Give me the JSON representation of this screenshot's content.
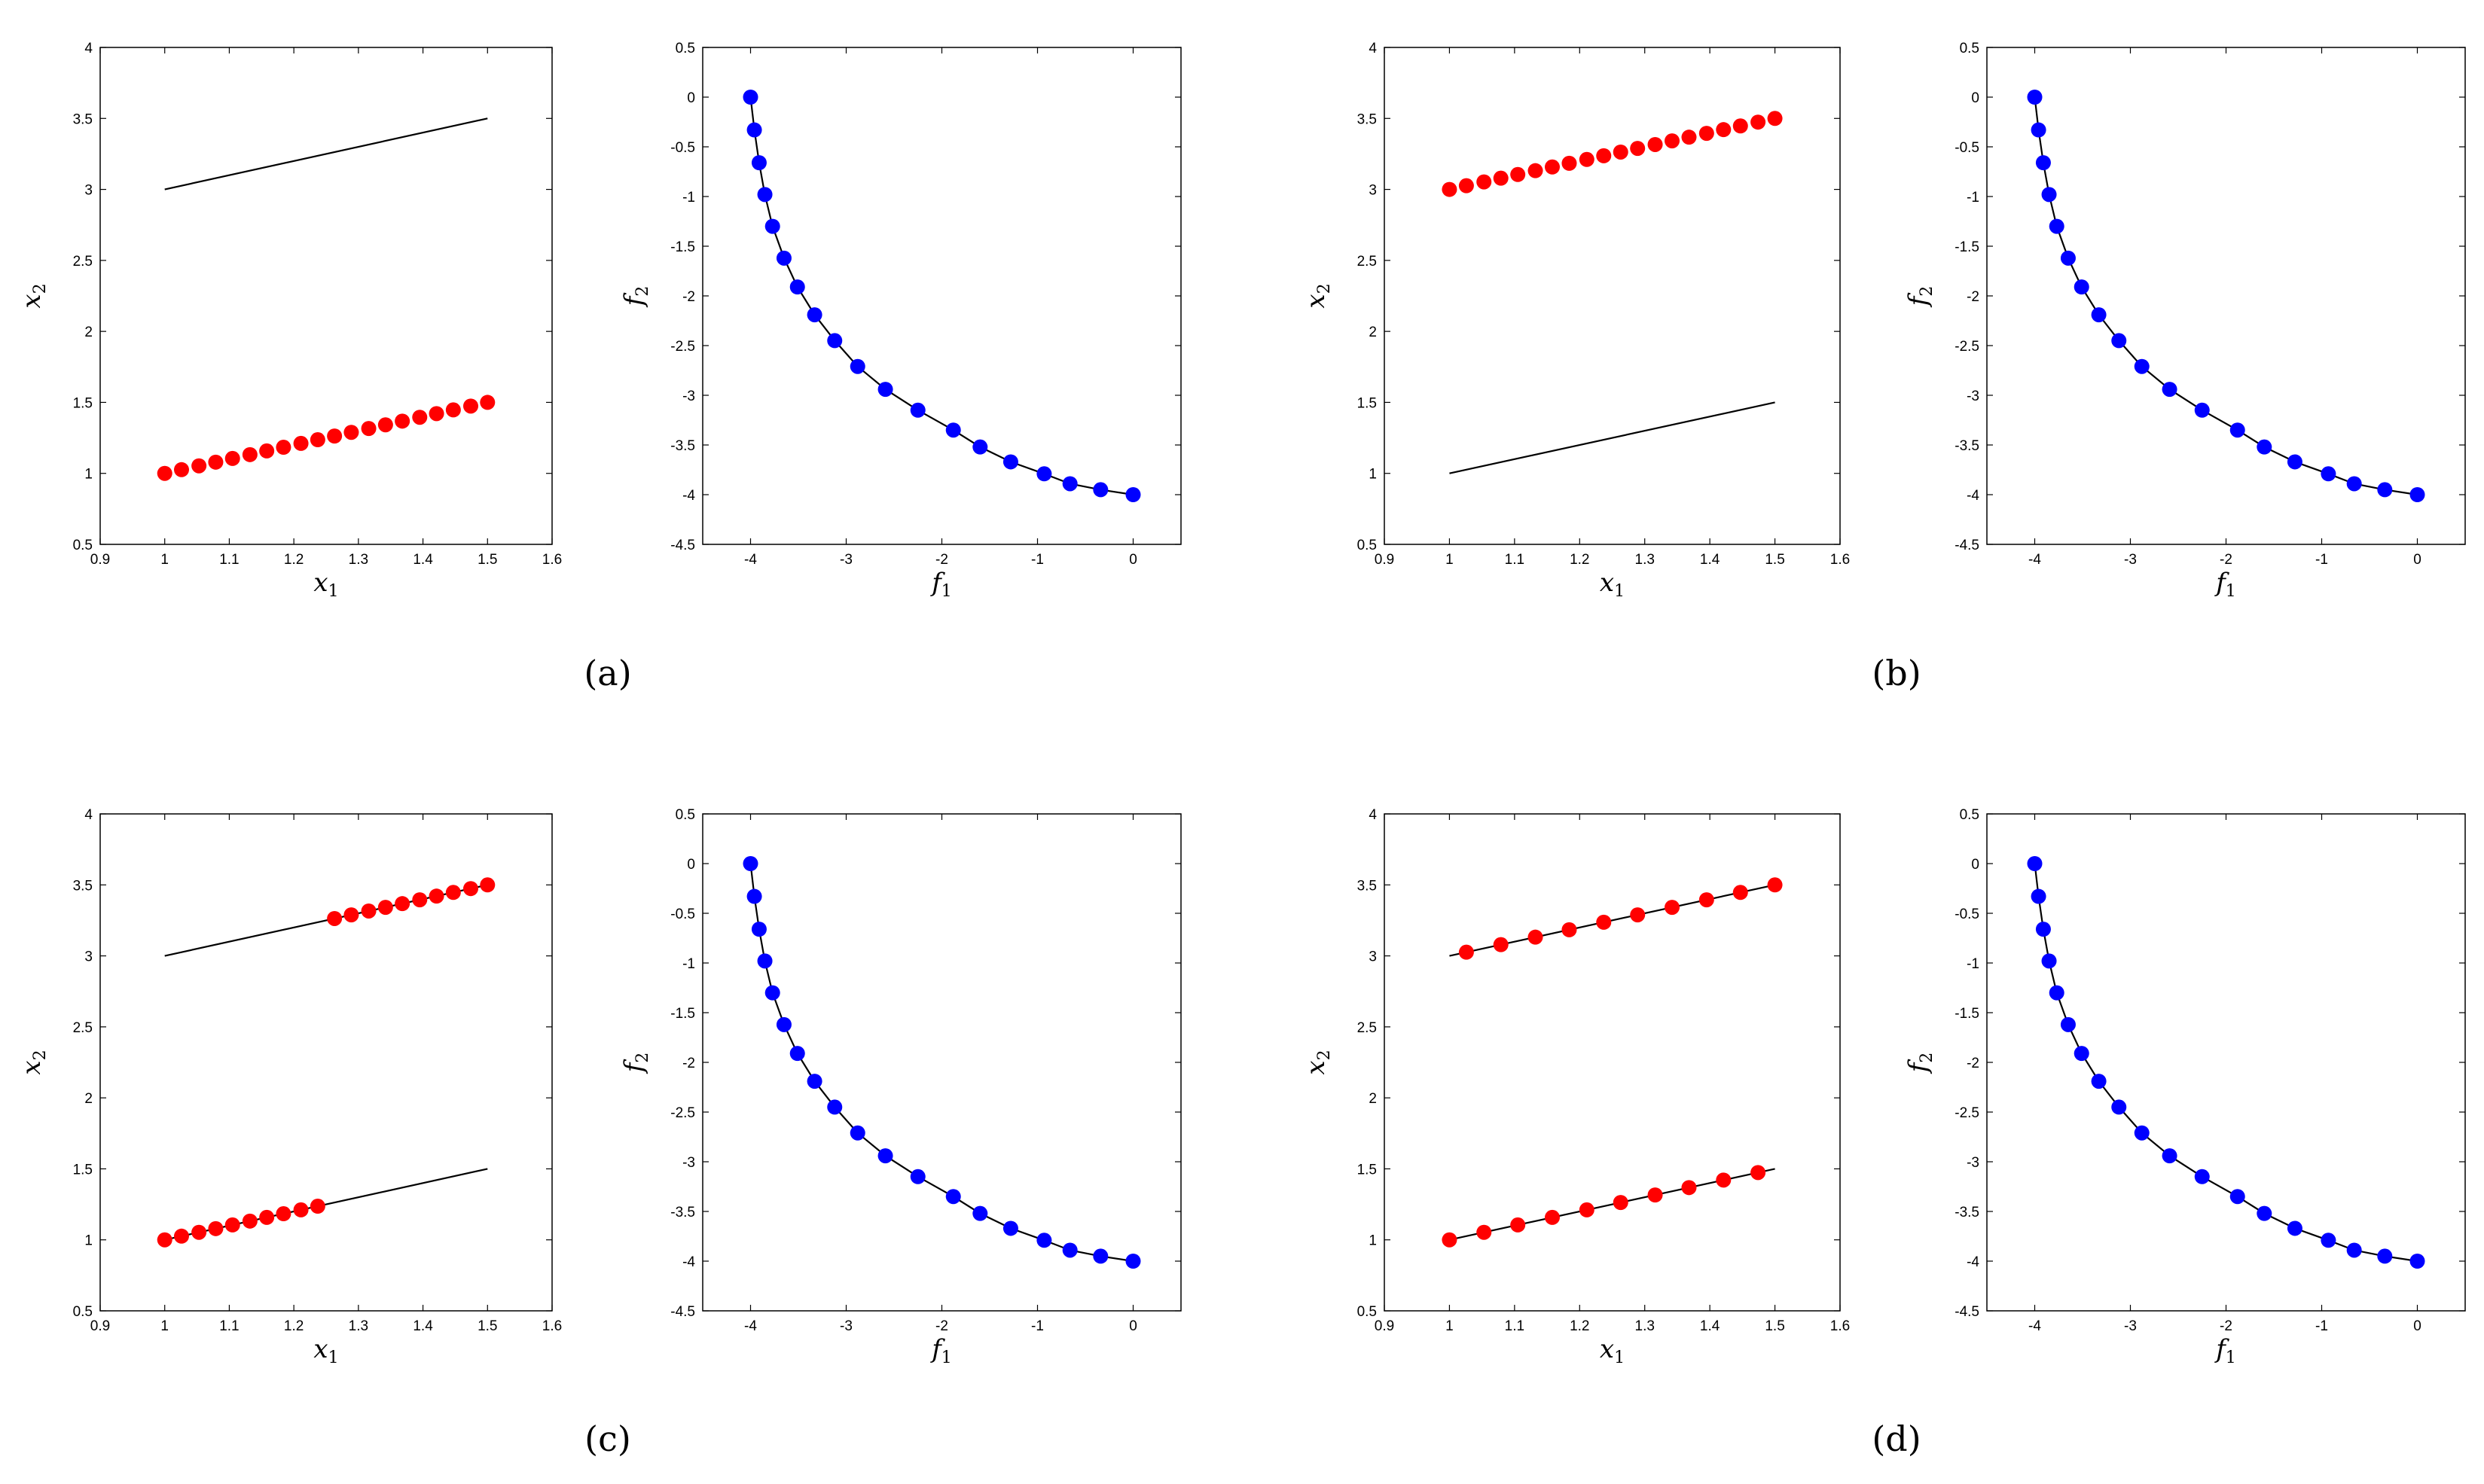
{
  "colors": {
    "decision_points": "#ff0000",
    "objective_points": "#0000ff",
    "curve": "#000000",
    "axes": "#000000",
    "background": "#ffffff"
  },
  "panels": [
    {
      "caption": "(a)"
    },
    {
      "caption": "(b)"
    },
    {
      "caption": "(c)"
    },
    {
      "caption": "(d)"
    }
  ],
  "chart_data": [
    {
      "type": "scatter",
      "panel": "(a)",
      "role": "decision space",
      "xlabel": "x",
      "xlabel_sub": "1",
      "ylabel": "x",
      "ylabel_sub": "2",
      "xlim": [
        0.9,
        1.6
      ],
      "ylim": [
        0.5,
        4
      ],
      "xticks": [
        "0.9",
        "1",
        "1.1",
        "1.2",
        "1.3",
        "1.4",
        "1.5",
        "1.6"
      ],
      "yticks": [
        "0.5",
        "1",
        "1.5",
        "2",
        "2.5",
        "3",
        "3.5",
        "4"
      ],
      "lines": [
        {
          "x": [
            1,
            1.5
          ],
          "y": [
            3,
            3.5
          ]
        }
      ],
      "points_x": [
        1.0,
        1.026,
        1.053,
        1.079,
        1.105,
        1.132,
        1.158,
        1.184,
        1.211,
        1.237,
        1.263,
        1.289,
        1.316,
        1.342,
        1.368,
        1.395,
        1.421,
        1.447,
        1.474,
        1.5
      ],
      "points_y": [
        1.0,
        1.026,
        1.053,
        1.079,
        1.105,
        1.132,
        1.158,
        1.184,
        1.211,
        1.237,
        1.263,
        1.289,
        1.316,
        1.342,
        1.368,
        1.395,
        1.421,
        1.447,
        1.474,
        1.5
      ]
    },
    {
      "type": "scatter",
      "panel": "(a)",
      "role": "objective space",
      "xlabel": "f",
      "xlabel_sub": "1",
      "ylabel": "f",
      "ylabel_sub": "2",
      "xlim": [
        -4.5,
        0.5
      ],
      "ylim": [
        -4.5,
        0.5
      ],
      "xticks": [
        "-4",
        "-3",
        "-2",
        "-1",
        "0"
      ],
      "yticks": [
        "-4.5",
        "-4",
        "-3.5",
        "-3",
        "-2.5",
        "-2",
        "-1.5",
        "-1",
        "-0.5",
        "0",
        "0.5"
      ],
      "points_x": [
        -4.0,
        -3.96,
        -3.91,
        -3.85,
        -3.77,
        -3.65,
        -3.51,
        -3.33,
        -3.12,
        -2.88,
        -2.59,
        -2.25,
        -1.88,
        -1.6,
        -1.28,
        -0.93,
        -0.66,
        -0.34,
        0.0
      ],
      "points_y": [
        0.0,
        -0.33,
        -0.66,
        -0.98,
        -1.3,
        -1.62,
        -1.91,
        -2.19,
        -2.45,
        -2.71,
        -2.94,
        -3.15,
        -3.35,
        -3.52,
        -3.67,
        -3.79,
        -3.89,
        -3.95,
        -4.0
      ]
    },
    {
      "type": "scatter",
      "panel": "(b)",
      "role": "decision space",
      "xlabel": "x",
      "xlabel_sub": "1",
      "ylabel": "x",
      "ylabel_sub": "2",
      "xlim": [
        0.9,
        1.6
      ],
      "ylim": [
        0.5,
        4
      ],
      "xticks": [
        "0.9",
        "1",
        "1.1",
        "1.2",
        "1.3",
        "1.4",
        "1.5",
        "1.6"
      ],
      "yticks": [
        "0.5",
        "1",
        "1.5",
        "2",
        "2.5",
        "3",
        "3.5",
        "4"
      ],
      "lines": [
        {
          "x": [
            1,
            1.5
          ],
          "y": [
            1,
            1.5
          ]
        }
      ],
      "points_x": [
        1.0,
        1.026,
        1.053,
        1.079,
        1.105,
        1.132,
        1.158,
        1.184,
        1.211,
        1.237,
        1.263,
        1.289,
        1.316,
        1.342,
        1.368,
        1.395,
        1.421,
        1.447,
        1.474,
        1.5
      ],
      "points_y": [
        3.0,
        3.026,
        3.053,
        3.079,
        3.105,
        3.132,
        3.158,
        3.184,
        3.211,
        3.237,
        3.263,
        3.289,
        3.316,
        3.342,
        3.368,
        3.395,
        3.421,
        3.447,
        3.474,
        3.5
      ]
    },
    {
      "type": "scatter",
      "panel": "(b)",
      "role": "objective space",
      "xlabel": "f",
      "xlabel_sub": "1",
      "ylabel": "f",
      "ylabel_sub": "2",
      "xlim": [
        -4.5,
        0.5
      ],
      "ylim": [
        -4.5,
        0.5
      ],
      "xticks": [
        "-4",
        "-3",
        "-2",
        "-1",
        "0"
      ],
      "yticks": [
        "-4.5",
        "-4",
        "-3.5",
        "-3",
        "-2.5",
        "-2",
        "-1.5",
        "-1",
        "-0.5",
        "0",
        "0.5"
      ],
      "points_x": [
        -4.0,
        -3.96,
        -3.91,
        -3.85,
        -3.77,
        -3.65,
        -3.51,
        -3.33,
        -3.12,
        -2.88,
        -2.59,
        -2.25,
        -1.88,
        -1.6,
        -1.28,
        -0.93,
        -0.66,
        -0.34,
        0.0
      ],
      "points_y": [
        0.0,
        -0.33,
        -0.66,
        -0.98,
        -1.3,
        -1.62,
        -1.91,
        -2.19,
        -2.45,
        -2.71,
        -2.94,
        -3.15,
        -3.35,
        -3.52,
        -3.67,
        -3.79,
        -3.89,
        -3.95,
        -4.0
      ]
    },
    {
      "type": "scatter",
      "panel": "(c)",
      "role": "decision space",
      "xlabel": "x",
      "xlabel_sub": "1",
      "ylabel": "x",
      "ylabel_sub": "2",
      "xlim": [
        0.9,
        1.6
      ],
      "ylim": [
        0.5,
        4
      ],
      "xticks": [
        "0.9",
        "1",
        "1.1",
        "1.2",
        "1.3",
        "1.4",
        "1.5",
        "1.6"
      ],
      "yticks": [
        "0.5",
        "1",
        "1.5",
        "2",
        "2.5",
        "3",
        "3.5",
        "4"
      ],
      "lines": [
        {
          "x": [
            1,
            1.5
          ],
          "y": [
            3,
            3.5
          ]
        },
        {
          "x": [
            1,
            1.5
          ],
          "y": [
            1,
            1.5
          ]
        }
      ],
      "points_x": [
        1.0,
        1.026,
        1.053,
        1.079,
        1.105,
        1.132,
        1.158,
        1.184,
        1.211,
        1.237,
        1.263,
        1.289,
        1.316,
        1.342,
        1.368,
        1.395,
        1.421,
        1.447,
        1.474,
        1.5
      ],
      "points_y": [
        1.0,
        1.026,
        1.053,
        1.079,
        1.105,
        1.132,
        1.158,
        1.184,
        1.211,
        1.237,
        3.263,
        3.289,
        3.316,
        3.342,
        3.368,
        3.395,
        3.421,
        3.447,
        3.474,
        3.5
      ]
    },
    {
      "type": "scatter",
      "panel": "(c)",
      "role": "objective space",
      "xlabel": "f",
      "xlabel_sub": "1",
      "ylabel": "f",
      "ylabel_sub": "2",
      "xlim": [
        -4.5,
        0.5
      ],
      "ylim": [
        -4.5,
        0.5
      ],
      "xticks": [
        "-4",
        "-3",
        "-2",
        "-1",
        "0"
      ],
      "yticks": [
        "-4.5",
        "-4",
        "-3.5",
        "-3",
        "-2.5",
        "-2",
        "-1.5",
        "-1",
        "-0.5",
        "0",
        "0.5"
      ],
      "points_x": [
        -4.0,
        -3.96,
        -3.91,
        -3.85,
        -3.77,
        -3.65,
        -3.51,
        -3.33,
        -3.12,
        -2.88,
        -2.59,
        -2.25,
        -1.88,
        -1.6,
        -1.28,
        -0.93,
        -0.66,
        -0.34,
        0.0
      ],
      "points_y": [
        0.0,
        -0.33,
        -0.66,
        -0.98,
        -1.3,
        -1.62,
        -1.91,
        -2.19,
        -2.45,
        -2.71,
        -2.94,
        -3.15,
        -3.35,
        -3.52,
        -3.67,
        -3.79,
        -3.89,
        -3.95,
        -4.0
      ]
    },
    {
      "type": "scatter",
      "panel": "(d)",
      "role": "decision space",
      "xlabel": "x",
      "xlabel_sub": "1",
      "ylabel": "x",
      "ylabel_sub": "2",
      "xlim": [
        0.9,
        1.6
      ],
      "ylim": [
        0.5,
        4
      ],
      "xticks": [
        "0.9",
        "1",
        "1.1",
        "1.2",
        "1.3",
        "1.4",
        "1.5",
        "1.6"
      ],
      "yticks": [
        "0.5",
        "1",
        "1.5",
        "2",
        "2.5",
        "3",
        "3.5",
        "4"
      ],
      "lines": [
        {
          "x": [
            1,
            1.5
          ],
          "y": [
            3,
            3.5
          ]
        },
        {
          "x": [
            1,
            1.5
          ],
          "y": [
            1,
            1.5
          ]
        }
      ],
      "points_x": [
        1.0,
        1.026,
        1.053,
        1.079,
        1.105,
        1.132,
        1.158,
        1.184,
        1.211,
        1.237,
        1.263,
        1.289,
        1.316,
        1.342,
        1.368,
        1.395,
        1.421,
        1.447,
        1.474,
        1.5
      ],
      "points_y": [
        1.0,
        3.026,
        1.053,
        3.079,
        1.105,
        3.132,
        1.158,
        3.184,
        1.211,
        3.237,
        1.263,
        3.289,
        1.316,
        3.342,
        1.368,
        3.395,
        1.421,
        3.447,
        1.474,
        3.5
      ]
    },
    {
      "type": "scatter",
      "panel": "(d)",
      "role": "objective space",
      "xlabel": "f",
      "xlabel_sub": "1",
      "ylabel": "f",
      "ylabel_sub": "2",
      "xlim": [
        -4.5,
        0.5
      ],
      "ylim": [
        -4.5,
        0.5
      ],
      "xticks": [
        "-4",
        "-3",
        "-2",
        "-1",
        "0"
      ],
      "yticks": [
        "-4.5",
        "-4",
        "-3.5",
        "-3",
        "-2.5",
        "-2",
        "-1.5",
        "-1",
        "-0.5",
        "0",
        "0.5"
      ],
      "points_x": [
        -4.0,
        -3.96,
        -3.91,
        -3.85,
        -3.77,
        -3.65,
        -3.51,
        -3.33,
        -3.12,
        -2.88,
        -2.59,
        -2.25,
        -1.88,
        -1.6,
        -1.28,
        -0.93,
        -0.66,
        -0.34,
        0.0
      ],
      "points_y": [
        0.0,
        -0.33,
        -0.66,
        -0.98,
        -1.3,
        -1.62,
        -1.91,
        -2.19,
        -2.45,
        -2.71,
        -2.94,
        -3.15,
        -3.35,
        -3.52,
        -3.67,
        -3.79,
        -3.89,
        -3.95,
        -4.0
      ]
    }
  ]
}
